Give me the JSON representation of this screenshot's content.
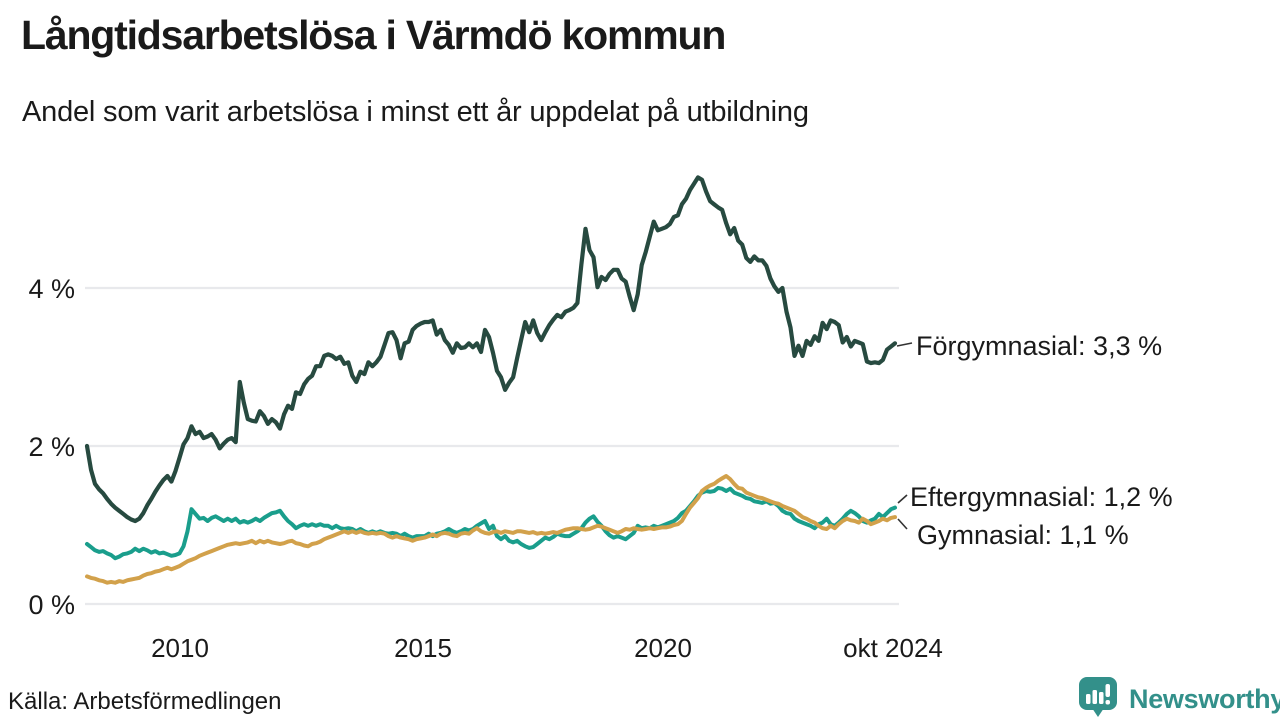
{
  "header": {
    "title": "Långtidsarbetslösa i Värmdö kommun",
    "subtitle": "Andel som varit arbetslösa i minst ett år uppdelat på utbildning"
  },
  "chart_data": {
    "type": "line",
    "title": "Långtidsarbetslösa i Värmdö kommun",
    "subtitle": "Andel som varit arbetslösa i minst ett år uppdelat på utbildning",
    "x_start": "2008-01",
    "x_end": "2024-10",
    "x_frequency": "monthly",
    "x_tick_labels": [
      "2010",
      "2015",
      "2020",
      "okt 2024"
    ],
    "y_tick_labels": [
      "0 %",
      "2 %",
      "4 %"
    ],
    "yticks": [
      0,
      2,
      4
    ],
    "ylim": [
      0,
      5.6
    ],
    "grid": "horizontal",
    "gridline_color": "#E8E9EC",
    "legend_position": "right-end-labels",
    "series": [
      {
        "name": "Förgymnasial",
        "label": "Förgymnasial: 3,3 %",
        "end_value": "3,3 %",
        "color": "#274A40",
        "values": [
          2.0,
          1.7,
          1.52,
          1.45,
          1.4,
          1.33,
          1.27,
          1.22,
          1.18,
          1.14,
          1.1,
          1.07,
          1.05,
          1.08,
          1.15,
          1.25,
          1.33,
          1.42,
          1.5,
          1.57,
          1.62,
          1.55,
          1.68,
          1.85,
          2.02,
          2.1,
          2.25,
          2.15,
          2.18,
          2.1,
          2.12,
          2.15,
          2.08,
          1.97,
          2.03,
          2.08,
          2.1,
          2.05,
          2.81,
          2.55,
          2.34,
          2.32,
          2.31,
          2.44,
          2.38,
          2.28,
          2.34,
          2.3,
          2.22,
          2.4,
          2.51,
          2.47,
          2.68,
          2.66,
          2.78,
          2.85,
          2.89,
          3.01,
          3.01,
          3.14,
          3.16,
          3.14,
          3.1,
          3.13,
          3.04,
          3.06,
          2.89,
          2.81,
          2.94,
          2.91,
          3.06,
          3.01,
          3.06,
          3.13,
          3.28,
          3.43,
          3.44,
          3.34,
          3.11,
          3.3,
          3.32,
          3.47,
          3.52,
          3.55,
          3.57,
          3.57,
          3.59,
          3.41,
          3.47,
          3.34,
          3.28,
          3.18,
          3.3,
          3.24,
          3.25,
          3.3,
          3.25,
          3.3,
          3.19,
          3.47,
          3.38,
          3.18,
          2.95,
          2.87,
          2.71,
          2.8,
          2.87,
          3.11,
          3.34,
          3.57,
          3.44,
          3.59,
          3.43,
          3.34,
          3.44,
          3.53,
          3.6,
          3.66,
          3.63,
          3.7,
          3.72,
          3.75,
          3.81,
          4.3,
          4.75,
          4.48,
          4.39,
          4.01,
          4.14,
          4.1,
          4.18,
          4.23,
          4.23,
          4.12,
          4.08,
          3.89,
          3.72,
          3.92,
          4.29,
          4.46,
          4.65,
          4.84,
          4.73,
          4.75,
          4.77,
          4.81,
          4.9,
          4.92,
          5.06,
          5.13,
          5.24,
          5.32,
          5.4,
          5.37,
          5.22,
          5.1,
          5.06,
          5.02,
          4.99,
          4.82,
          4.68,
          4.76,
          4.6,
          4.55,
          4.38,
          4.33,
          4.4,
          4.35,
          4.35,
          4.28,
          4.12,
          4.02,
          3.95,
          4.0,
          3.7,
          3.5,
          3.14,
          3.27,
          3.14,
          3.33,
          3.28,
          3.39,
          3.33,
          3.56,
          3.48,
          3.59,
          3.57,
          3.53,
          3.31,
          3.38,
          3.26,
          3.33,
          3.31,
          3.29,
          3.07,
          3.05,
          3.06,
          3.05,
          3.09,
          3.22,
          3.26,
          3.3
        ]
      },
      {
        "name": "Eftergymnasial",
        "label": "Eftergymnasial: 1,2 %",
        "end_value": "1,2 %",
        "color": "#1A9E8C",
        "values": [
          0.76,
          0.72,
          0.68,
          0.66,
          0.67,
          0.64,
          0.62,
          0.58,
          0.6,
          0.63,
          0.64,
          0.66,
          0.7,
          0.67,
          0.7,
          0.68,
          0.65,
          0.67,
          0.64,
          0.65,
          0.63,
          0.61,
          0.62,
          0.64,
          0.73,
          0.92,
          1.2,
          1.14,
          1.08,
          1.09,
          1.05,
          1.09,
          1.11,
          1.08,
          1.05,
          1.08,
          1.05,
          1.08,
          1.03,
          1.05,
          1.03,
          1.05,
          1.08,
          1.05,
          1.09,
          1.12,
          1.15,
          1.16,
          1.18,
          1.11,
          1.05,
          1.01,
          0.96,
          0.99,
          1.01,
          0.99,
          1.01,
          0.99,
          1.01,
          0.99,
          0.99,
          0.96,
          0.99,
          0.96,
          0.95,
          0.96,
          0.95,
          0.92,
          0.95,
          0.92,
          0.9,
          0.92,
          0.9,
          0.92,
          0.9,
          0.89,
          0.9,
          0.89,
          0.86,
          0.89,
          0.86,
          0.84,
          0.86,
          0.86,
          0.86,
          0.89,
          0.86,
          0.89,
          0.9,
          0.92,
          0.95,
          0.92,
          0.9,
          0.92,
          0.95,
          0.93,
          0.95,
          0.99,
          1.02,
          1.05,
          0.95,
          0.99,
          0.86,
          0.82,
          0.86,
          0.8,
          0.78,
          0.8,
          0.76,
          0.73,
          0.71,
          0.72,
          0.76,
          0.8,
          0.84,
          0.82,
          0.85,
          0.89,
          0.87,
          0.86,
          0.86,
          0.89,
          0.92,
          0.96,
          1.03,
          1.08,
          1.11,
          1.04,
          0.99,
          0.92,
          0.87,
          0.84,
          0.86,
          0.84,
          0.82,
          0.86,
          0.9,
          0.99,
          0.96,
          0.97,
          0.96,
          0.99,
          0.97,
          0.99,
          1.01,
          1.03,
          1.05,
          1.09,
          1.15,
          1.18,
          1.24,
          1.3,
          1.37,
          1.41,
          1.43,
          1.42,
          1.43,
          1.47,
          1.46,
          1.43,
          1.46,
          1.41,
          1.39,
          1.37,
          1.34,
          1.33,
          1.3,
          1.29,
          1.28,
          1.3,
          1.27,
          1.28,
          1.24,
          1.18,
          1.15,
          1.14,
          1.08,
          1.05,
          1.03,
          1.01,
          0.99,
          0.96,
          1.01,
          1.03,
          1.08,
          1.01,
          0.99,
          1.03,
          1.08,
          1.14,
          1.18,
          1.15,
          1.11,
          1.05,
          1.03,
          1.06,
          1.08,
          1.14,
          1.1,
          1.15,
          1.2,
          1.22
        ]
      },
      {
        "name": "Gymnasial",
        "label": "Gymnasial: 1,1 %",
        "end_value": "1,1 %",
        "color": "#D2A14B",
        "values": [
          0.35,
          0.33,
          0.32,
          0.3,
          0.29,
          0.27,
          0.28,
          0.27,
          0.29,
          0.28,
          0.3,
          0.31,
          0.32,
          0.33,
          0.36,
          0.38,
          0.39,
          0.41,
          0.42,
          0.44,
          0.46,
          0.44,
          0.46,
          0.48,
          0.51,
          0.54,
          0.56,
          0.58,
          0.61,
          0.63,
          0.65,
          0.67,
          0.69,
          0.71,
          0.73,
          0.75,
          0.76,
          0.77,
          0.76,
          0.77,
          0.78,
          0.8,
          0.77,
          0.8,
          0.78,
          0.8,
          0.78,
          0.77,
          0.76,
          0.77,
          0.79,
          0.8,
          0.77,
          0.76,
          0.74,
          0.73,
          0.76,
          0.77,
          0.79,
          0.82,
          0.84,
          0.86,
          0.88,
          0.9,
          0.92,
          0.9,
          0.92,
          0.9,
          0.92,
          0.9,
          0.89,
          0.9,
          0.89,
          0.9,
          0.89,
          0.86,
          0.84,
          0.86,
          0.84,
          0.83,
          0.82,
          0.8,
          0.82,
          0.83,
          0.84,
          0.86,
          0.88,
          0.86,
          0.89,
          0.9,
          0.89,
          0.87,
          0.86,
          0.89,
          0.9,
          0.89,
          0.93,
          0.96,
          0.92,
          0.9,
          0.89,
          0.91,
          0.92,
          0.9,
          0.92,
          0.91,
          0.9,
          0.92,
          0.92,
          0.91,
          0.9,
          0.91,
          0.89,
          0.9,
          0.89,
          0.9,
          0.91,
          0.9,
          0.92,
          0.94,
          0.95,
          0.96,
          0.96,
          0.95,
          0.94,
          0.95,
          0.97,
          0.99,
          0.98,
          0.96,
          0.94,
          0.92,
          0.9,
          0.92,
          0.95,
          0.94,
          0.96,
          0.95,
          0.94,
          0.95,
          0.96,
          0.95,
          0.96,
          0.97,
          0.97,
          0.98,
          1.0,
          1.01,
          1.05,
          1.14,
          1.22,
          1.28,
          1.34,
          1.43,
          1.47,
          1.5,
          1.52,
          1.56,
          1.59,
          1.62,
          1.58,
          1.52,
          1.47,
          1.46,
          1.41,
          1.39,
          1.37,
          1.35,
          1.34,
          1.32,
          1.3,
          1.28,
          1.27,
          1.24,
          1.22,
          1.2,
          1.18,
          1.14,
          1.1,
          1.08,
          1.05,
          1.03,
          0.99,
          0.96,
          0.95,
          0.99,
          0.96,
          1.01,
          1.05,
          1.08,
          1.06,
          1.05,
          1.03,
          1.08,
          1.05,
          1.01,
          1.03,
          1.05,
          1.08,
          1.06,
          1.09,
          1.1
        ]
      }
    ]
  },
  "footer": {
    "source": "Källa: Arbetsförmedlingen",
    "brand": "Newsworthy",
    "brand_color": "#33908A"
  }
}
